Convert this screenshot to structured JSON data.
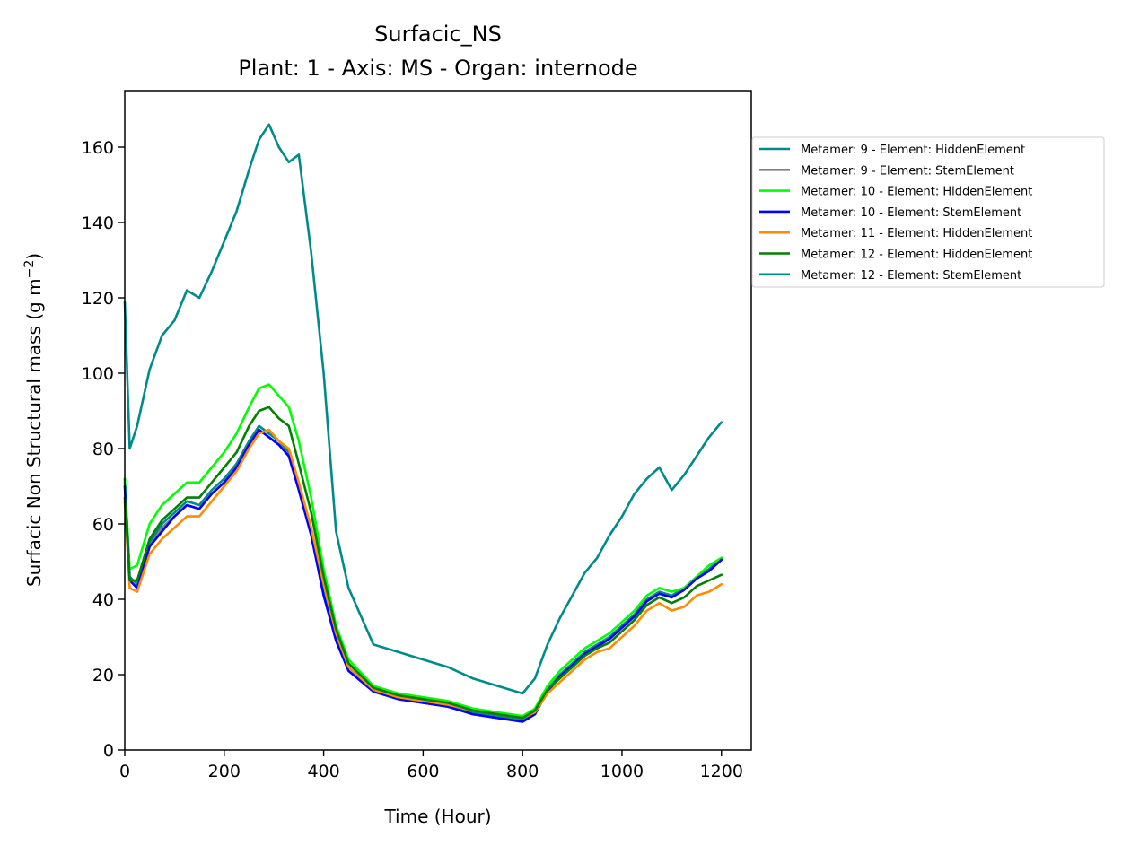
{
  "chart_data": {
    "type": "line",
    "title": "Surfacic_NS",
    "subtitle": "Plant: 1 - Axis: MS - Organ: internode",
    "xlabel": "Time (Hour)",
    "ylabel_main": "Surfacic Non Structural mass (g m",
    "ylabel_sup": "−2",
    "ylabel_tail": ")",
    "xlim": [
      0,
      1260
    ],
    "ylim": [
      0,
      175
    ],
    "xticks": [
      0,
      200,
      400,
      600,
      800,
      1000,
      1200
    ],
    "yticks": [
      0,
      20,
      40,
      60,
      80,
      100,
      120,
      140,
      160
    ],
    "grid": false,
    "legend_position": "outside-right",
    "series": [
      {
        "name": "Metamer: 9 - Element: HiddenElement",
        "color": "#008b8b",
        "x": [
          0,
          10,
          25,
          50,
          75,
          100,
          125,
          150,
          175,
          200,
          225,
          250,
          270,
          290,
          310,
          330,
          350,
          375,
          400,
          425,
          450,
          500,
          550,
          600,
          650,
          700,
          750,
          800,
          825,
          850,
          875,
          900,
          925,
          950,
          975,
          1000,
          1025,
          1050,
          1075,
          1100,
          1125,
          1150,
          1175,
          1200
        ],
        "y": [
          72,
          46,
          44,
          55,
          60,
          63,
          66,
          65,
          69,
          72,
          76,
          82,
          86,
          84,
          82,
          79,
          70,
          58,
          42,
          30,
          22,
          16,
          14,
          13,
          12,
          10,
          9,
          8,
          10,
          16,
          20,
          23,
          26,
          28,
          30,
          33,
          36,
          40,
          42,
          41,
          43,
          46,
          48,
          51
        ]
      },
      {
        "name": "Metamer: 9 - Element: StemElement",
        "color": "#808080",
        "x": [
          0,
          10,
          25,
          50,
          75,
          100,
          125,
          150,
          175,
          200,
          225,
          250,
          270,
          290,
          310,
          330,
          350,
          375,
          400,
          425,
          450,
          500,
          550,
          600,
          650,
          700,
          750,
          800,
          825,
          850,
          875,
          900,
          925,
          950,
          975,
          1000,
          1025,
          1050,
          1075,
          1100,
          1125,
          1150,
          1175,
          1200
        ],
        "y": [
          71,
          45,
          43,
          54,
          59,
          62,
          65,
          64,
          68,
          71,
          75,
          81,
          85,
          83,
          81,
          78,
          69,
          57,
          41,
          29,
          21,
          15.5,
          13.5,
          12.5,
          11.5,
          9.5,
          8.5,
          7.5,
          9.5,
          15.5,
          19.5,
          22.5,
          25.5,
          27.5,
          29.5,
          32.5,
          35.5,
          39.5,
          41.5,
          40.5,
          42.5,
          45.5,
          47.5,
          50.5
        ]
      },
      {
        "name": "Metamer: 10 - Element: HiddenElement",
        "color": "#00ff00",
        "x": [
          0,
          10,
          25,
          50,
          75,
          100,
          125,
          150,
          175,
          200,
          225,
          250,
          270,
          290,
          310,
          330,
          350,
          375,
          400,
          425,
          450,
          500,
          550,
          600,
          650,
          700,
          750,
          800,
          825,
          850,
          875,
          900,
          925,
          950,
          975,
          1000,
          1025,
          1050,
          1075,
          1100,
          1125,
          1150,
          1175,
          1200
        ],
        "y": [
          72,
          48,
          49,
          60,
          65,
          68,
          71,
          71,
          75,
          79,
          84,
          91,
          96,
          97,
          94,
          91,
          82,
          67,
          48,
          33,
          24,
          17,
          15,
          14,
          13,
          11,
          10,
          9,
          11,
          17,
          21,
          24,
          27,
          29,
          31,
          34,
          37,
          41,
          43,
          42,
          43,
          46,
          49,
          51
        ]
      },
      {
        "name": "Metamer: 10 - Element: StemElement",
        "color": "#0000ff",
        "x": [
          0,
          10,
          25,
          50,
          75,
          100,
          125,
          150,
          175,
          200,
          225,
          250,
          270,
          290,
          310,
          330,
          350,
          375,
          400,
          425,
          450,
          500,
          550,
          600,
          650,
          700,
          750,
          800,
          825,
          850,
          875,
          900,
          925,
          950,
          975,
          1000,
          1025,
          1050,
          1075,
          1100,
          1125,
          1150,
          1175,
          1200
        ],
        "y": [
          70,
          45,
          43,
          54,
          58,
          62,
          65,
          64,
          68,
          71,
          75,
          81,
          85,
          83,
          81,
          78,
          69,
          57,
          41,
          29,
          21,
          15.5,
          13.5,
          12.5,
          11.5,
          9.5,
          8.5,
          7.5,
          9.5,
          15.5,
          19.5,
          22.5,
          25.5,
          27.5,
          29.5,
          32.5,
          35.5,
          39.5,
          41.5,
          40.5,
          42.5,
          45.5,
          47.5,
          50.5
        ]
      },
      {
        "name": "Metamer: 11 - Element: HiddenElement",
        "color": "#ff8c00",
        "x": [
          0,
          10,
          25,
          50,
          75,
          100,
          125,
          150,
          175,
          200,
          225,
          250,
          270,
          290,
          310,
          330,
          350,
          375,
          400,
          425,
          450,
          500,
          550,
          600,
          650,
          700,
          750,
          800,
          825,
          850,
          875,
          900,
          925,
          950,
          975,
          1000,
          1025,
          1050,
          1075,
          1100,
          1125,
          1150,
          1175,
          1200
        ],
        "y": [
          66,
          43,
          42,
          52,
          56,
          59,
          62,
          62,
          66,
          70,
          74,
          80,
          84,
          85,
          82,
          80,
          71,
          59,
          44,
          31,
          22,
          16,
          14,
          13,
          12,
          10.5,
          9.5,
          8.5,
          10,
          15,
          18,
          21,
          24,
          26,
          27,
          30,
          33,
          37,
          39,
          37,
          38,
          41,
          42,
          44
        ]
      },
      {
        "name": "Metamer: 12 - Element: HiddenElement",
        "color": "#008000",
        "x": [
          0,
          10,
          25,
          50,
          75,
          100,
          125,
          150,
          175,
          200,
          225,
          250,
          270,
          290,
          310,
          330,
          350,
          375,
          400,
          425,
          450,
          500,
          550,
          600,
          650,
          700,
          750,
          800,
          825,
          850,
          875,
          900,
          925,
          950,
          975,
          1000,
          1025,
          1050,
          1075,
          1100,
          1125,
          1150,
          1175,
          1200
        ],
        "y": [
          67,
          45,
          45,
          56,
          61,
          64,
          67,
          67,
          71,
          75,
          79,
          86,
          90,
          91,
          88,
          86,
          76,
          63,
          46,
          32,
          23,
          16.5,
          14.5,
          13.5,
          12.5,
          10.5,
          9.5,
          8.5,
          10.5,
          16,
          19,
          22,
          25,
          27,
          28.5,
          31.5,
          34.5,
          38.5,
          40.5,
          39,
          40.5,
          43.5,
          45,
          46.5
        ]
      },
      {
        "name": "Metamer: 12 - Element: StemElement",
        "color": "#008b8b",
        "x": [
          0,
          10,
          25,
          50,
          75,
          100,
          125,
          150,
          175,
          200,
          225,
          250,
          270,
          290,
          310,
          330,
          350,
          375,
          400,
          425,
          450,
          500,
          550,
          600,
          650,
          700,
          750,
          800,
          825,
          850,
          875,
          900,
          925,
          950,
          975,
          1000,
          1025,
          1050,
          1075,
          1100,
          1125,
          1150,
          1175,
          1200
        ],
        "y": [
          119,
          80,
          86,
          101,
          110,
          114,
          122,
          120,
          127,
          135,
          143,
          154,
          162,
          166,
          160,
          156,
          158,
          132,
          100,
          58,
          43,
          28,
          26,
          24,
          22,
          19,
          17,
          15,
          19,
          28,
          35,
          41,
          47,
          51,
          57,
          62,
          68,
          72,
          75,
          69,
          73,
          78,
          83,
          87
        ]
      }
    ]
  }
}
